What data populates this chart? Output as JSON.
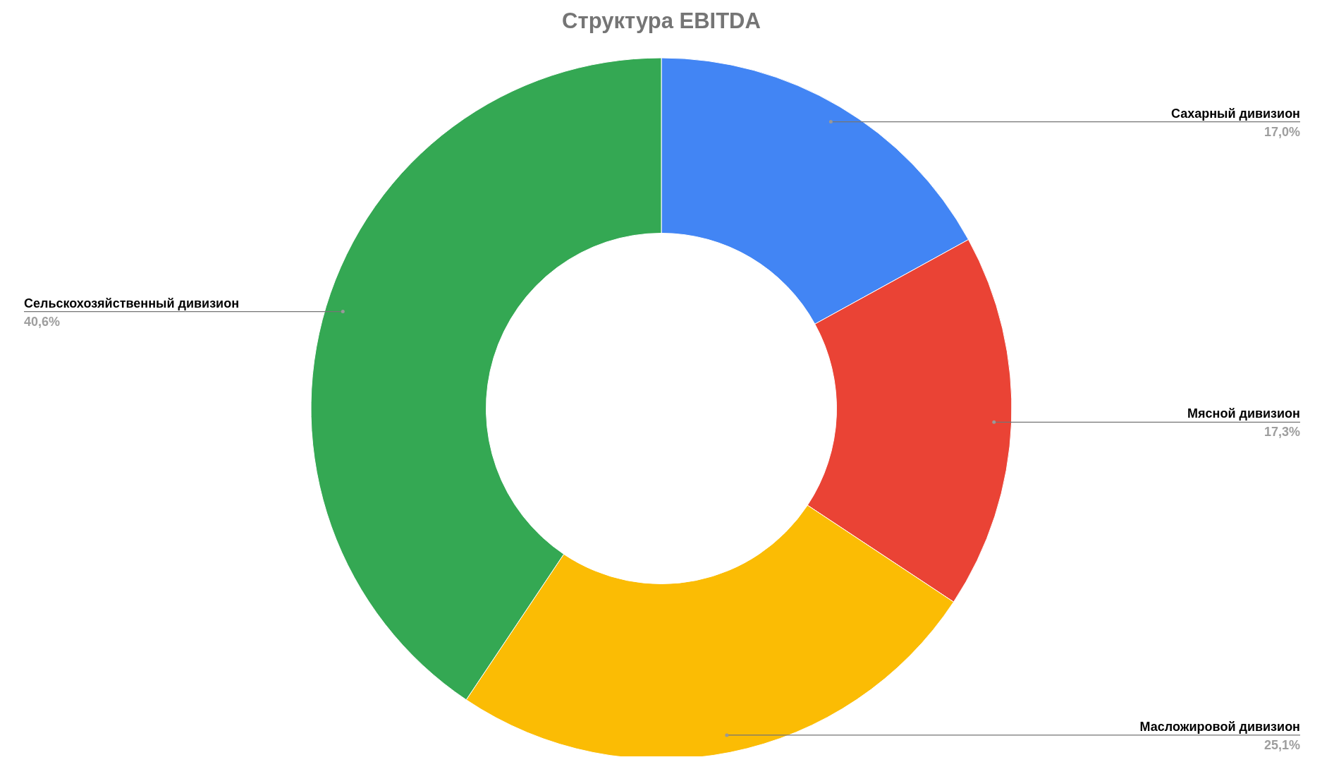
{
  "chart_data": {
    "type": "donut",
    "title": "Структура EBITDA",
    "categories": [
      "Сахарный дивизион",
      "Мясной дивизион",
      "Масложировой дивизион",
      "Сельскохозяйственный дивизион"
    ],
    "values": [
      17.0,
      17.3,
      25.1,
      40.6
    ],
    "colors": [
      "#4285f4",
      "#ea4335",
      "#fbbc04",
      "#34a853"
    ],
    "value_labels": [
      "17,0%",
      "17,3%",
      "25,1%",
      "40,6%"
    ]
  }
}
